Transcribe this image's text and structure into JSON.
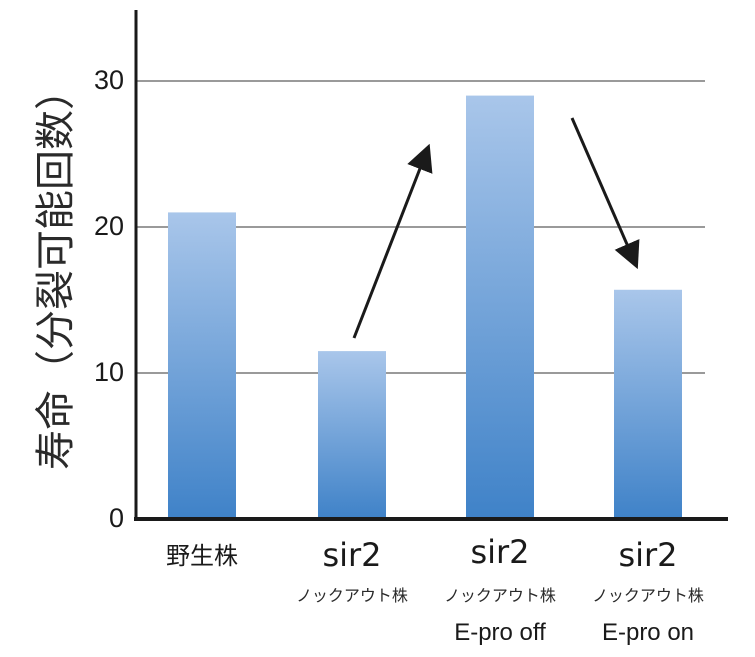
{
  "chart_data": {
    "type": "bar",
    "ylabel": "寿命（分裂可能回数）",
    "ylim": [
      0,
      30
    ],
    "yticks": [
      0,
      10,
      20,
      30
    ],
    "grid": true,
    "categories": [
      {
        "label": "野生株",
        "sub": "",
        "note": ""
      },
      {
        "label": "sir2",
        "sub": "ノックアウト株",
        "note": ""
      },
      {
        "label": "sir2",
        "sub": "ノックアウト株",
        "note": "E-pro off"
      },
      {
        "label": "sir2",
        "sub": "ノックアウト株",
        "note": "E-pro on"
      }
    ],
    "values": [
      21,
      11.5,
      29,
      15.7
    ],
    "annotations": [
      {
        "type": "arrow",
        "direction": "up",
        "between": [
          "sir2 ノックアウト株",
          "sir2 ノックアウト株 E-pro off"
        ]
      },
      {
        "type": "arrow",
        "direction": "down",
        "between": [
          "sir2 ノックアウト株 E-pro off",
          "sir2 ノックアウト株 E-pro on"
        ]
      }
    ],
    "colors": {
      "bar_top": "#a9c6ea",
      "bar_bottom": "#3f82c8",
      "grid": "#9a9a9a",
      "axis": "#1a1a1a"
    }
  }
}
